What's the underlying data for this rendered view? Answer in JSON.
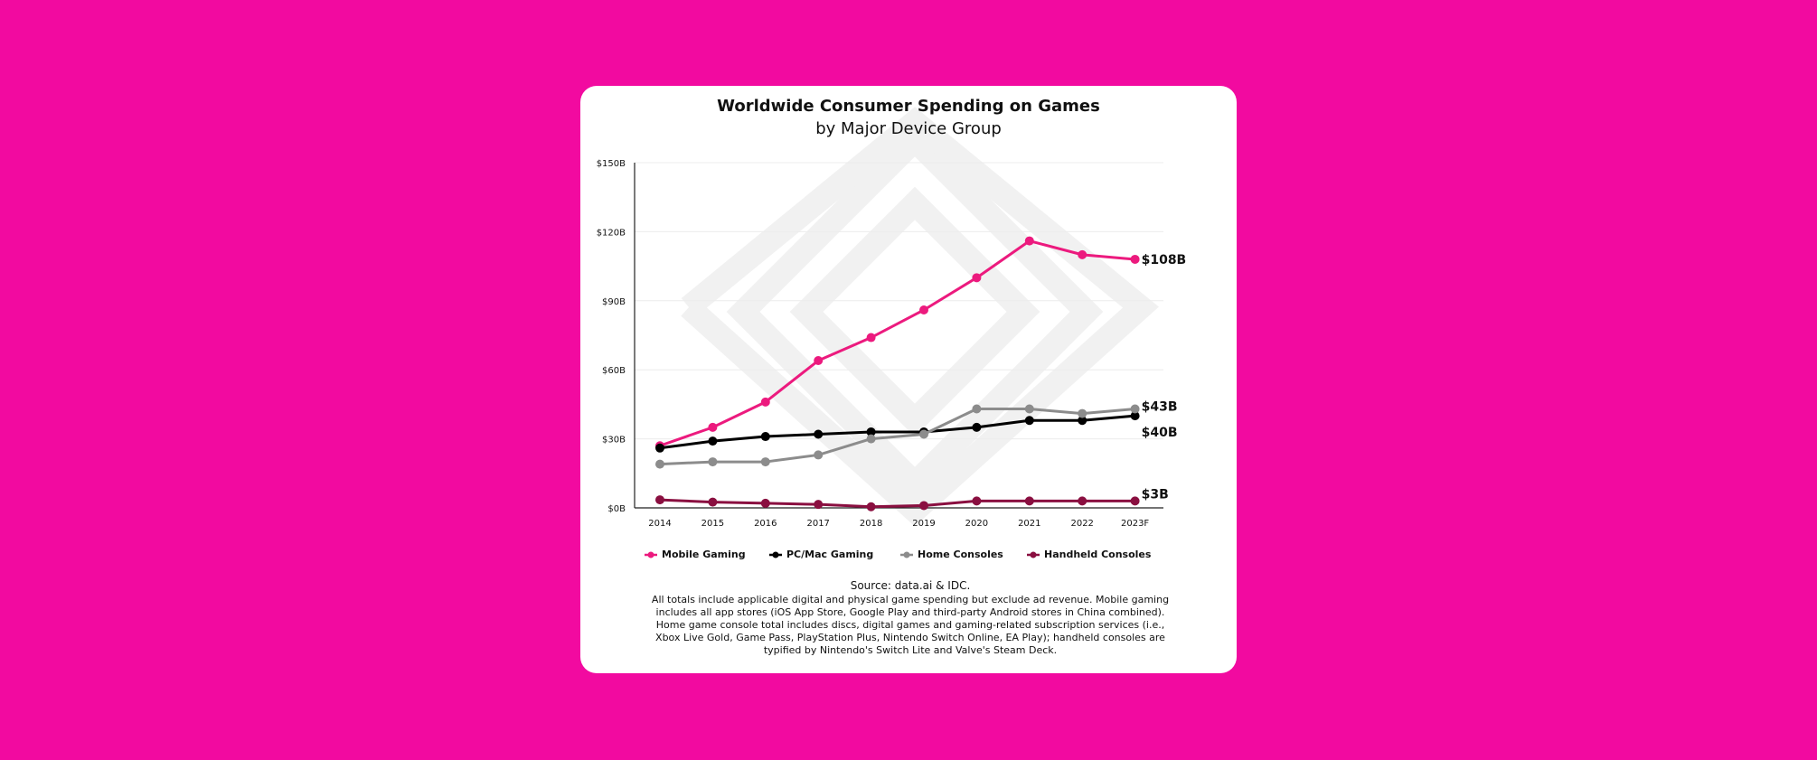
{
  "colors": {
    "background": "#f20aa0",
    "card": "#ffffff"
  },
  "chart_data": {
    "type": "line",
    "title": "Worldwide Consumer Spending on Games",
    "subtitle": "by Major Device Group",
    "xlabel": "",
    "ylabel": "",
    "categories": [
      "2014",
      "2015",
      "2016",
      "2017",
      "2018",
      "2019",
      "2020",
      "2021",
      "2022",
      "2023F"
    ],
    "ylim": [
      0,
      150
    ],
    "yticks": [
      0,
      30,
      60,
      90,
      120,
      150
    ],
    "ytick_labels": [
      "$0B",
      "$30B",
      "$60B",
      "$90B",
      "$120B",
      "$150B"
    ],
    "grid": true,
    "legend_position": "bottom",
    "series": [
      {
        "name": "Mobile Gaming",
        "color": "#ec1a7e",
        "values": [
          27,
          35,
          46,
          64,
          74,
          86,
          100,
          116,
          110,
          108
        ],
        "end_label": "$108B"
      },
      {
        "name": "PC/Mac Gaming",
        "color": "#000000",
        "values": [
          26,
          29,
          31,
          32,
          33,
          33,
          35,
          38,
          38,
          40
        ],
        "end_label": "$40B"
      },
      {
        "name": "Home Consoles",
        "color": "#8c8c8c",
        "values": [
          19,
          20,
          20,
          23,
          30,
          32,
          43,
          43,
          41,
          43
        ],
        "end_label": "$43B"
      },
      {
        "name": "Handheld Consoles",
        "color": "#8a0f40",
        "values": [
          3.5,
          2.5,
          2,
          1.5,
          0.5,
          1,
          3,
          3,
          3,
          3
        ],
        "end_label": "$3B"
      }
    ]
  },
  "source": "Source: data.ai & IDC.",
  "notes": "All totals include applicable digital and physical game spending but exclude ad revenue. Mobile gaming includes all app stores (iOS App Store, Google Play and third-party Android stores in China combined). Home game console total includes discs, digital games and gaming-related subscription services (i.e., Xbox Live Gold, Game Pass, PlayStation Plus, Nintendo Switch Online, EA Play); handheld consoles are typified by Nintendo's Switch Lite and Valve's Steam Deck."
}
